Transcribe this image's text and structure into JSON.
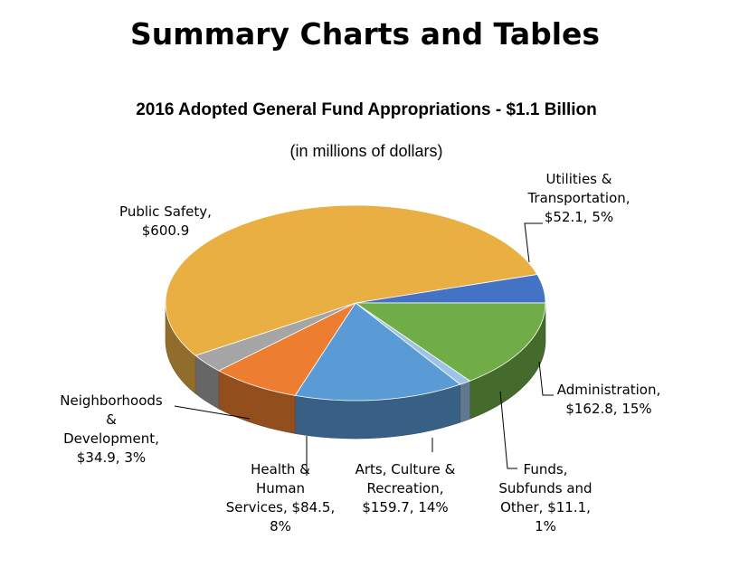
{
  "page": {
    "heading": "Summary Charts and Tables"
  },
  "chart_data": {
    "type": "pie",
    "title": "2016 Adopted General Fund Appropriations - $1.1 Billion",
    "subtitle": "(in millions of dollars)",
    "slices": [
      {
        "name": "Utilities & Transportation",
        "value": 52.1,
        "percent": "5%",
        "label": "Utilities &\nTransportation,\n$52.1, 5%",
        "color": "#4472C4"
      },
      {
        "name": "Administration",
        "value": 162.8,
        "percent": "15%",
        "label": "Administration,\n$162.8, 15%",
        "color": "#70AD47"
      },
      {
        "name": "Funds, Subfunds and Other",
        "value": 11.1,
        "percent": "1%",
        "label": "Funds,\nSubfunds and\nOther, $11.1,\n1%",
        "color": "#9DC3E6"
      },
      {
        "name": "Arts, Culture & Recreation",
        "value": 159.7,
        "percent": "14%",
        "label": "Arts, Culture &\nRecreation,\n$159.7, 14%",
        "color": "#5B9BD5"
      },
      {
        "name": "Health & Human Services",
        "value": 84.5,
        "percent": "8%",
        "label": "Health &\nHuman\nServices, $84.5,\n8%",
        "color": "#ED7D31"
      },
      {
        "name": "Neighborhoods & Development",
        "value": 34.9,
        "percent": "3%",
        "label": "Neighborhoods\n&\nDevelopment,\n$34.9, 3%",
        "color": "#A5A5A5"
      },
      {
        "name": "Public Safety",
        "value": 600.9,
        "percent": "",
        "label": "Public Safety,\n$600.9",
        "color": "#E9AF43"
      }
    ]
  }
}
